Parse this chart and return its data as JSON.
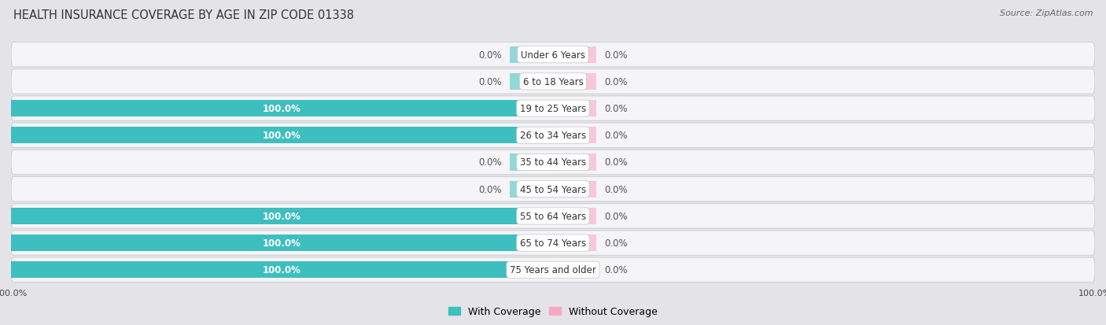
{
  "title": "HEALTH INSURANCE COVERAGE BY AGE IN ZIP CODE 01338",
  "source": "Source: ZipAtlas.com",
  "categories": [
    "Under 6 Years",
    "6 to 18 Years",
    "19 to 25 Years",
    "26 to 34 Years",
    "35 to 44 Years",
    "45 to 54 Years",
    "55 to 64 Years",
    "65 to 74 Years",
    "75 Years and older"
  ],
  "with_coverage": [
    0.0,
    0.0,
    100.0,
    100.0,
    0.0,
    0.0,
    100.0,
    100.0,
    100.0
  ],
  "without_coverage": [
    0.0,
    0.0,
    0.0,
    0.0,
    0.0,
    0.0,
    0.0,
    0.0,
    0.0
  ],
  "color_with": "#3DBFBF",
  "color_with_light": "#91D8D8",
  "color_without": "#F7A8C0",
  "color_without_light": "#F7C8D8",
  "bg_color": "#e4e4e8",
  "row_bg": "#f5f5f7",
  "title_fontsize": 10.5,
  "source_fontsize": 8,
  "label_fontsize": 8.5,
  "cat_fontsize": 8.5,
  "legend_fontsize": 9,
  "axis_label_fontsize": 8,
  "xlim_left": -100,
  "xlim_right": 100,
  "bar_height": 0.62,
  "stub_size": 8
}
